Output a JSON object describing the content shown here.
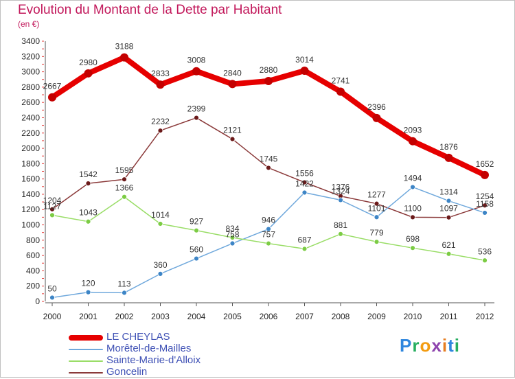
{
  "title": "Evolution du Montant de la Dette par Habitant",
  "unit_label": "(en €)",
  "logo_text": "Proxiti",
  "chart_data": {
    "type": "line",
    "title": "Evolution du Montant de la Dette par Habitant",
    "ylabel": "(en €)",
    "xlabel": "",
    "x": [
      "2000",
      "2001",
      "2002",
      "2003",
      "2004",
      "2005",
      "2006",
      "2007",
      "2008",
      "2009",
      "2010",
      "2011",
      "2012"
    ],
    "ylim": [
      0,
      3400
    ],
    "yticks": [
      0,
      200,
      400,
      600,
      800,
      1000,
      1200,
      1400,
      1600,
      1800,
      2000,
      2200,
      2400,
      2600,
      2800,
      3000,
      3200,
      3400
    ],
    "grid": false,
    "legend_position": "bottom-left",
    "series": [
      {
        "name": "LE CHEYLAS",
        "color": "#e60000",
        "marker_color": "#c40000",
        "values": [
          2667,
          2980,
          3188,
          2833,
          3008,
          2840,
          2880,
          3014,
          2741,
          2396,
          2093,
          1876,
          1652
        ]
      },
      {
        "name": "Morêtel-de-Mailles",
        "color": "#6fa8dc",
        "marker_color": "#3d85c6",
        "values": [
          50,
          120,
          113,
          360,
          560,
          758,
          946,
          1422,
          1324,
          1101,
          1494,
          1314,
          1158
        ]
      },
      {
        "name": "Sainte-Marie-d'Alloix",
        "color": "#99dd66",
        "marker_color": "#7ccc44",
        "values": [
          1127,
          1043,
          1366,
          1014,
          927,
          834,
          757,
          687,
          881,
          779,
          698,
          621,
          536
        ]
      },
      {
        "name": "Goncelin",
        "color": "#8b3a3a",
        "marker_color": "#6b1a1a",
        "values": [
          1204,
          1542,
          1595,
          2232,
          2399,
          2121,
          1745,
          1556,
          1376,
          1277,
          1100,
          1097,
          1254
        ]
      }
    ]
  }
}
